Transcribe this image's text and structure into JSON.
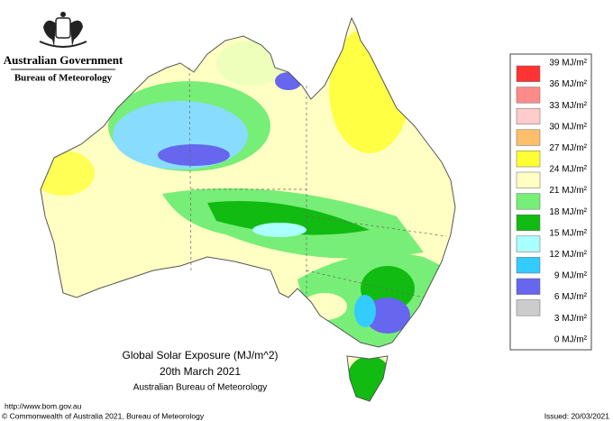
{
  "header": {
    "government": "Australian Government",
    "agency": "Bureau of Meteorology"
  },
  "legend": {
    "labels": [
      "39 MJ/m²",
      "36 MJ/m²",
      "33 MJ/m²",
      "30 MJ/m²",
      "27 MJ/m²",
      "24 MJ/m²",
      "21 MJ/m²",
      "18 MJ/m²",
      "15 MJ/m²",
      "12 MJ/m²",
      "9 MJ/m²",
      "6 MJ/m²",
      "3 MJ/m²",
      "0 MJ/m²"
    ],
    "colors": [
      "#ff3333",
      "#ff8a8a",
      "#ffcccc",
      "#ffbe6a",
      "#ffff33",
      "#ffffc4",
      "#77ee77",
      "#11bb11",
      "#aaffff",
      "#33ccff",
      "#6666ee",
      "#cccccc"
    ]
  },
  "caption": {
    "title": "Global Solar Exposure (MJ/m^2)",
    "date": "20th March 2021",
    "source": "Australian Bureau of Meteorology"
  },
  "footer": {
    "url": "http://www.bom.gov.au",
    "copyright": "© Commonwealth of Australia 2021, Bureau of Meteorology",
    "issued": "Issued: 20/03/2021"
  }
}
